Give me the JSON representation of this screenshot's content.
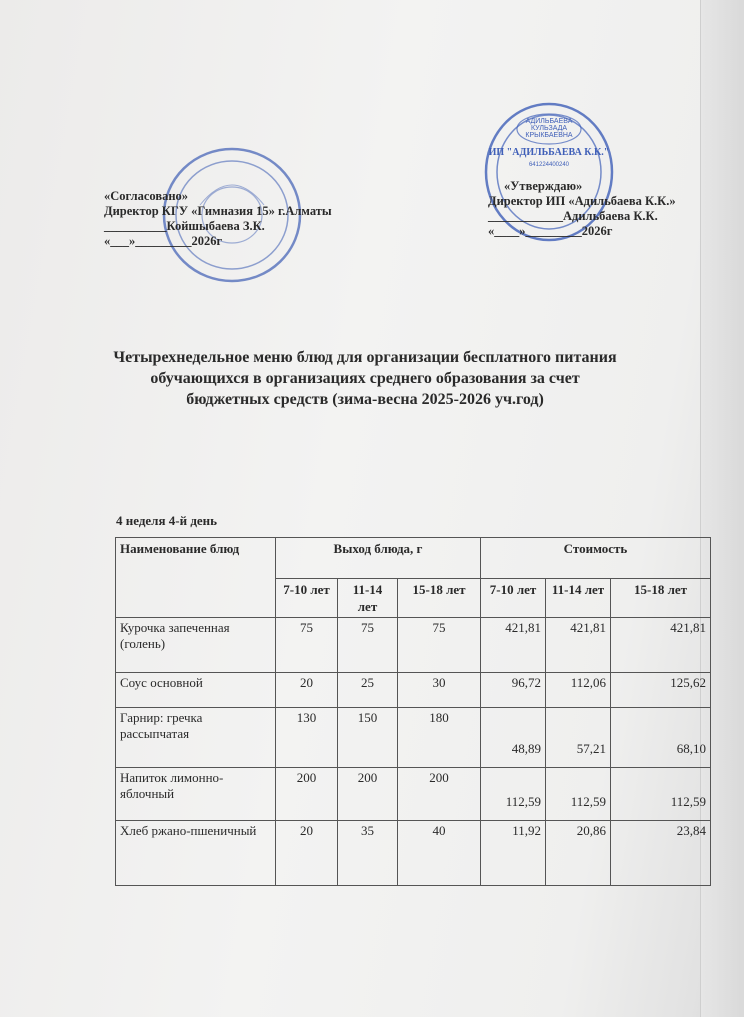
{
  "approval_left": {
    "label": "«Согласовано»",
    "line1": "Директор КГУ «Гимназия 15» г.Алматы",
    "line2": "__________Койшыбаева З.К.",
    "line3": "«___»_________2026г"
  },
  "approval_right": {
    "label": "«Утверждаю»",
    "line1": "Директор ИП «Адильбаева К.К.»",
    "line2": "____________Адильбаева К.К.",
    "line3": "«____»_________2026г",
    "stamp_text": "ИП \"АДИЛЬБАЕВА К.К.\" АДИЛЬБАЕВА КУЛЬЗАДА КРЫКБАЕВНА 641224400240"
  },
  "stamp_color": "#3f5fb8",
  "title": "Четырехнедельное меню блюд для организации бесплатного питания обучающихся в организациях среднего образования за счет бюджетных средств (зима-весна  2025-2026 уч.год)",
  "week_label": "4 неделя 4-й день",
  "table": {
    "headers": {
      "name": "Наименование блюд",
      "yield": "Выход блюда, г",
      "cost": "Стоимость"
    },
    "age_groups": [
      "7-10 лет",
      "11-14 лет",
      "15-18 лет"
    ],
    "rows": [
      {
        "name": "Курочка запеченная (голень)",
        "yield": [
          "75",
          "75",
          "75"
        ],
        "cost": [
          "421,81",
          "421,81",
          "421,81"
        ]
      },
      {
        "name": "Соус основной",
        "yield": [
          "20",
          "25",
          "30"
        ],
        "cost": [
          "96,72",
          "112,06",
          "125,62"
        ]
      },
      {
        "name": "Гарнир: гречка рассыпчатая",
        "yield": [
          "130",
          "150",
          "180"
        ],
        "cost": [
          "48,89",
          "57,21",
          "68,10"
        ]
      },
      {
        "name": "Напиток лимонно-яблочный",
        "yield": [
          "200",
          "200",
          "200"
        ],
        "cost": [
          "112,59",
          "112,59",
          "112,59"
        ]
      },
      {
        "name": "Хлеб ржано-пшеничный",
        "yield": [
          "20",
          "35",
          "40"
        ],
        "cost": [
          "11,92",
          "20,86",
          "23,84"
        ]
      }
    ]
  }
}
